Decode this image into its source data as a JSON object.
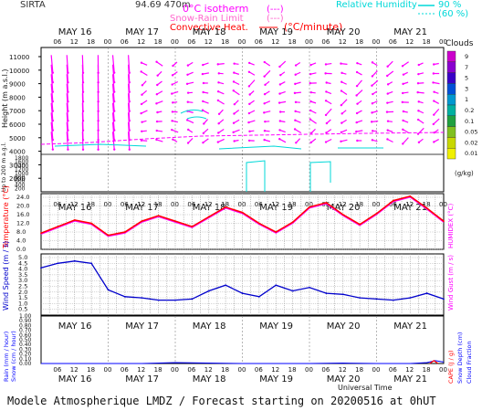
{
  "header": {
    "station": "SIRTA",
    "coords": "94.69 470m",
    "legend_isotherm": "0°C isotherm",
    "legend_snow_rain": "Snow-Rain Limit",
    "legend_convective": "Convective Heat.",
    "legend_convective_unit": "(°C/minute)",
    "legend_dashes": "(---)",
    "legend_rh": "Relative Humidity",
    "rh_90": "90 %",
    "rh_60": "(60 %)"
  },
  "colors": {
    "wind_arrows": "#ff00ff",
    "temperature": "#ff0000",
    "humidex": "#ff00ff",
    "wind_speed": "#0000cc",
    "rain": "#0000ff",
    "cyan": "#00e0e0"
  },
  "days": [
    "MAY 16",
    "MAY 17",
    "MAY 18",
    "MAY 19",
    "MAY 20",
    "MAY 21"
  ],
  "hour_ticks": [
    "06",
    "12",
    "18",
    "00"
  ],
  "clouds_legend": {
    "title": "Clouds",
    "unit": "(g/kg)",
    "levels": [
      "9",
      "7",
      "5",
      "3",
      "1",
      "0.2",
      "0.1",
      "0.05",
      "0.02",
      "0.01"
    ],
    "colors": [
      "#cc00cc",
      "#8a00d0",
      "#3a00c8",
      "#0050d8",
      "#0098d0",
      "#00b0a0",
      "#20a040",
      "#80c020",
      "#c8d800",
      "#f0f000"
    ]
  },
  "height_panel": {
    "ylabel": "Height (m a.s.l.)",
    "ylabel2": "Up to 200 m a.g.l.",
    "yticks_upper": [
      "11000",
      "10000",
      "9000",
      "8000",
      "7000",
      "6000",
      "5000",
      "4000",
      "3000",
      "2000"
    ],
    "yticks_lower": [
      "1800",
      "1600",
      "1400",
      "1200",
      "1000",
      "800",
      "600",
      "400",
      "200"
    ]
  },
  "temp_panel": {
    "ylabel": "Temperature (°C)",
    "ylabel_right": "HUMIDEX (°C)",
    "yticks": [
      "24.0",
      "20.0",
      "16.0",
      "12.0",
      "8.0",
      "4.0",
      "0.0"
    ]
  },
  "wind_panel": {
    "ylabel": "Wind Speed (m / s)",
    "ylabel_right": "Wind Gust (m / s)",
    "yticks": [
      "5.0",
      "4.5",
      "4.0",
      "3.5",
      "3.0",
      "2.5",
      "2.0",
      "1.5",
      "1.0",
      "0.5"
    ]
  },
  "rain_panel": {
    "ylabel": "Rain (mm / hour)",
    "ylabel2": "Snow (cm / hour)",
    "ylabel_right": "CAPE (J / g)",
    "ylabel_right2": "Snow Depth (cm)",
    "ylabel_right3": "Cloud Fraction",
    "yticks": [
      "1.00",
      "0.90",
      "0.80",
      "0.70",
      "0.60",
      "0.50",
      "0.40",
      "0.30",
      "0.20",
      "0.10",
      "0.00"
    ]
  },
  "xaxis_label": "Universal Time",
  "footer": "Modele Atmospherique LMDZ / Forecast starting on 20200516 at 0hUT",
  "chart_data": [
    {
      "type": "line",
      "title": "",
      "ylabel": "Temperature (°C)",
      "ylim": [
        0,
        24
      ],
      "x_hours": [
        0,
        6,
        12,
        18,
        24,
        30,
        36,
        42,
        48,
        54,
        60,
        66,
        72,
        78,
        84,
        90,
        96,
        102,
        108,
        114,
        120,
        126,
        132,
        138,
        144
      ],
      "series": [
        {
          "name": "Temperature",
          "values": [
            7.5,
            10.5,
            13.5,
            12,
            6.5,
            8,
            13,
            15.5,
            13,
            10.5,
            15,
            19.5,
            17,
            12,
            8,
            12.5,
            19.5,
            21.5,
            16,
            11.5,
            16.5,
            22.5,
            24.5,
            19,
            13
          ]
        }
      ]
    },
    {
      "type": "line",
      "title": "",
      "ylabel": "Wind Speed (m / s)",
      "ylim": [
        0.5,
        5.0
      ],
      "x_hours": [
        0,
        6,
        12,
        18,
        24,
        30,
        36,
        42,
        48,
        54,
        60,
        66,
        72,
        78,
        84,
        90,
        96,
        102,
        108,
        114,
        120,
        126,
        132,
        138,
        144
      ],
      "series": [
        {
          "name": "Wind Speed",
          "values": [
            4.1,
            4.5,
            4.7,
            4.5,
            2.2,
            1.6,
            1.5,
            1.3,
            1.3,
            1.4,
            2.1,
            2.6,
            1.9,
            1.6,
            2.6,
            2.1,
            2.4,
            1.9,
            1.8,
            1.5,
            1.4,
            1.3,
            1.5,
            1.9,
            1.4
          ]
        }
      ]
    },
    {
      "type": "line",
      "title": "",
      "ylabel": "Rain (mm / hour)",
      "ylim": [
        0,
        1
      ],
      "x_hours": [
        0,
        12,
        24,
        36,
        48,
        60,
        72,
        84,
        96,
        108,
        120,
        132,
        138,
        141,
        144
      ],
      "series": [
        {
          "name": "Rain",
          "values": [
            0,
            0,
            0,
            0,
            0.02,
            0.01,
            0,
            0,
            0,
            0.01,
            0,
            0,
            0.02,
            0.06,
            0.03
          ]
        }
      ]
    }
  ]
}
